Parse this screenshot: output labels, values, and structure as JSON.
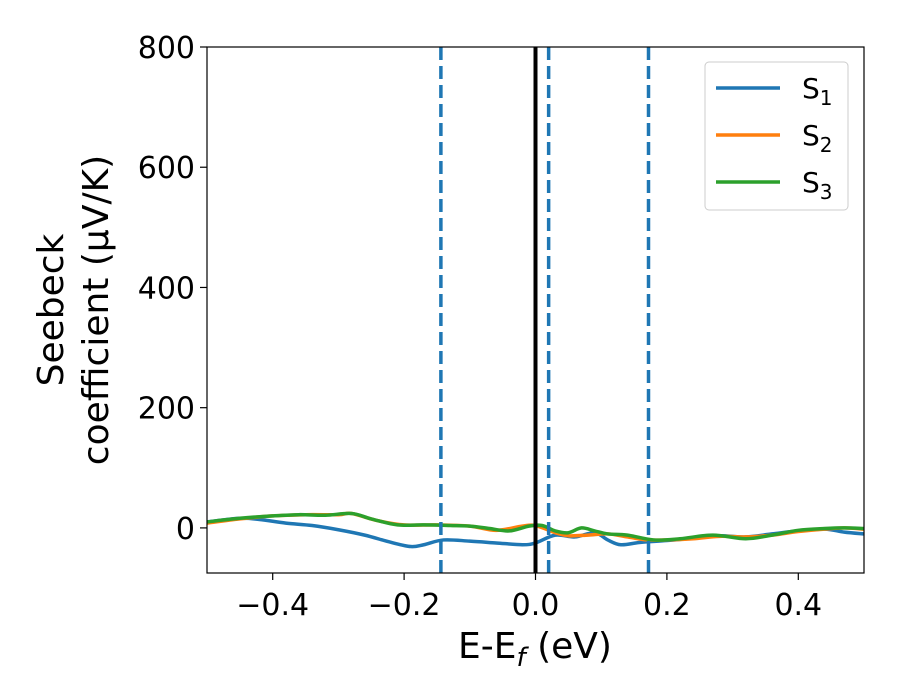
{
  "chart_data": {
    "type": "line",
    "xlabel": "E-E",
    "xlabel_sub": "f",
    "xlabel_unit": " (eV)",
    "ylabel_line1": "Seebeck",
    "ylabel_line2": "coefficient  (μV/K)",
    "xlim": [
      -0.5,
      0.5
    ],
    "ylim": [
      -75,
      800
    ],
    "x_ticks": [
      -0.4,
      -0.2,
      0.0,
      0.2,
      0.4
    ],
    "x_tick_labels": [
      "−0.4",
      "−0.2",
      "0.0",
      "0.2",
      "0.4"
    ],
    "y_ticks": [
      0,
      200,
      400,
      600,
      800
    ],
    "y_tick_labels": [
      "0",
      "200",
      "400",
      "600",
      "800"
    ],
    "grid": false,
    "legend_position": "top-right",
    "vertical_lines": [
      {
        "x": -0.144,
        "style": "dashed",
        "color": "#1f77b4"
      },
      {
        "x": 0.0,
        "style": "solid",
        "color": "#000000"
      },
      {
        "x": 0.02,
        "style": "dashed",
        "color": "#1f77b4"
      },
      {
        "x": 0.172,
        "style": "dashed",
        "color": "#1f77b4"
      }
    ],
    "series": [
      {
        "name": "S",
        "sub": "1",
        "color": "#1f77b4",
        "x": [
          -0.5,
          -0.45,
          -0.42,
          -0.38,
          -0.34,
          -0.3,
          -0.26,
          -0.22,
          -0.19,
          -0.17,
          -0.14,
          -0.1,
          -0.06,
          -0.02,
          0.0,
          0.03,
          0.06,
          0.09,
          0.11,
          0.13,
          0.16,
          0.2,
          0.24,
          0.28,
          0.32,
          0.36,
          0.4,
          0.44,
          0.47,
          0.5
        ],
        "y": [
          10,
          16,
          14,
          8,
          4,
          -3,
          -12,
          -24,
          -31,
          -28,
          -20,
          -22,
          -25,
          -28,
          -25,
          -12,
          -15,
          -8,
          -20,
          -28,
          -24,
          -21,
          -17,
          -13,
          -15,
          -10,
          -5,
          -2,
          -7,
          -10
        ]
      },
      {
        "name": "S",
        "sub": "2",
        "color": "#ff7f0e",
        "x": [
          -0.5,
          -0.45,
          -0.4,
          -0.35,
          -0.3,
          -0.28,
          -0.24,
          -0.2,
          -0.15,
          -0.1,
          -0.06,
          -0.02,
          0.0,
          0.03,
          0.05,
          0.08,
          0.11,
          0.14,
          0.17,
          0.2,
          0.24,
          0.28,
          0.32,
          0.36,
          0.4,
          0.44,
          0.47,
          0.5
        ],
        "y": [
          8,
          15,
          20,
          22,
          22,
          24,
          12,
          5,
          5,
          3,
          -4,
          3,
          4,
          -8,
          -13,
          -12,
          -10,
          -15,
          -20,
          -20,
          -18,
          -14,
          -15,
          -12,
          -6,
          -2,
          0,
          -2
        ]
      },
      {
        "name": "S",
        "sub": "3",
        "color": "#2ca02c",
        "x": [
          -0.5,
          -0.45,
          -0.4,
          -0.36,
          -0.32,
          -0.28,
          -0.25,
          -0.21,
          -0.17,
          -0.13,
          -0.1,
          -0.07,
          -0.04,
          -0.01,
          0.01,
          0.03,
          0.05,
          0.07,
          0.09,
          0.11,
          0.14,
          0.18,
          0.22,
          0.27,
          0.32,
          0.36,
          0.4,
          0.44,
          0.47,
          0.5
        ],
        "y": [
          10,
          16,
          20,
          22,
          21,
          24,
          15,
          5,
          5,
          4,
          3,
          -1,
          -5,
          3,
          4,
          -5,
          -8,
          0,
          -5,
          -10,
          -12,
          -20,
          -18,
          -12,
          -18,
          -12,
          -4,
          -1,
          0,
          -1
        ]
      }
    ]
  }
}
